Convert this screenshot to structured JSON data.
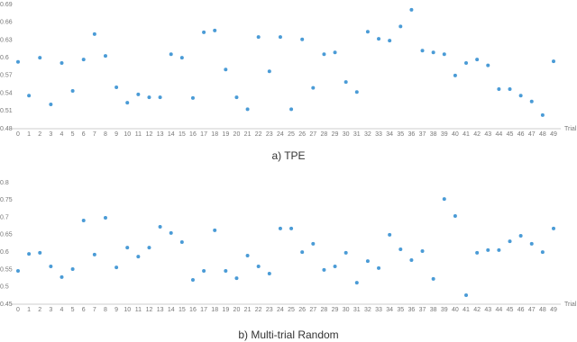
{
  "chart_data": [
    {
      "type": "scatter",
      "caption": "a) TPE",
      "xlabel": "Trial",
      "color": "#4a9bd6",
      "grid": false,
      "x": [
        0,
        1,
        2,
        3,
        4,
        5,
        6,
        7,
        8,
        9,
        10,
        11,
        12,
        13,
        14,
        15,
        16,
        17,
        18,
        19,
        20,
        21,
        22,
        23,
        24,
        25,
        26,
        27,
        28,
        29,
        30,
        31,
        32,
        33,
        34,
        35,
        36,
        37,
        38,
        39,
        40,
        41,
        42,
        43,
        44,
        45,
        46,
        47,
        48,
        49
      ],
      "values": [
        0.593,
        0.536,
        0.6,
        0.521,
        0.591,
        0.544,
        0.597,
        0.64,
        0.603,
        0.55,
        0.524,
        0.538,
        0.533,
        0.533,
        0.606,
        0.6,
        0.532,
        0.643,
        0.646,
        0.58,
        0.533,
        0.513,
        0.635,
        0.577,
        0.635,
        0.513,
        0.631,
        0.549,
        0.606,
        0.609,
        0.559,
        0.542,
        0.644,
        0.632,
        0.629,
        0.653,
        0.681,
        0.612,
        0.609,
        0.606,
        0.57,
        0.591,
        0.597,
        0.587,
        0.547,
        0.547,
        0.536,
        0.526,
        0.503,
        0.594
      ],
      "xlim": [
        0,
        49
      ],
      "xticks": [
        0,
        1,
        2,
        3,
        4,
        5,
        6,
        7,
        8,
        9,
        10,
        11,
        12,
        13,
        14,
        15,
        16,
        17,
        18,
        19,
        20,
        21,
        22,
        23,
        24,
        25,
        26,
        27,
        28,
        29,
        30,
        31,
        32,
        33,
        34,
        35,
        36,
        37,
        38,
        39,
        40,
        41,
        42,
        43,
        44,
        45,
        46,
        47,
        48,
        49
      ],
      "ylim": [
        0.48,
        0.69
      ],
      "yticks": [
        0.48,
        0.51,
        0.54,
        0.57,
        0.6,
        0.63,
        0.66,
        0.69
      ]
    },
    {
      "type": "scatter",
      "caption": "b) Multi-trial Random",
      "xlabel": "Trial",
      "color": "#4a9bd6",
      "grid": false,
      "x": [
        0,
        1,
        2,
        3,
        4,
        5,
        6,
        7,
        8,
        9,
        10,
        11,
        12,
        13,
        14,
        15,
        16,
        17,
        18,
        19,
        20,
        21,
        22,
        23,
        24,
        25,
        26,
        27,
        28,
        29,
        30,
        31,
        32,
        33,
        34,
        35,
        36,
        37,
        38,
        39,
        40,
        41,
        42,
        43,
        44,
        45,
        46,
        47,
        48,
        49
      ],
      "values": [
        0.546,
        0.595,
        0.598,
        0.559,
        0.528,
        0.551,
        0.691,
        0.593,
        0.699,
        0.556,
        0.613,
        0.587,
        0.613,
        0.673,
        0.655,
        0.629,
        0.52,
        0.546,
        0.663,
        0.546,
        0.525,
        0.59,
        0.559,
        0.538,
        0.668,
        0.668,
        0.6,
        0.624,
        0.549,
        0.559,
        0.598,
        0.512,
        0.574,
        0.554,
        0.65,
        0.608,
        0.577,
        0.603,
        0.523,
        0.753,
        0.704,
        0.476,
        0.598,
        0.606,
        0.606,
        0.631,
        0.647,
        0.624,
        0.6,
        0.668
      ],
      "xlim": [
        0,
        49
      ],
      "xticks": [
        0,
        1,
        2,
        3,
        4,
        5,
        6,
        7,
        8,
        9,
        10,
        11,
        12,
        13,
        14,
        15,
        16,
        17,
        18,
        19,
        20,
        21,
        22,
        23,
        24,
        25,
        26,
        27,
        28,
        29,
        30,
        31,
        32,
        33,
        34,
        35,
        36,
        37,
        38,
        39,
        40,
        41,
        42,
        43,
        44,
        45,
        46,
        47,
        48,
        49
      ],
      "ylim": [
        0.45,
        0.8
      ],
      "yticks": [
        0.45,
        0.5,
        0.55,
        0.6,
        0.65,
        0.7,
        0.75,
        0.8
      ]
    }
  ]
}
